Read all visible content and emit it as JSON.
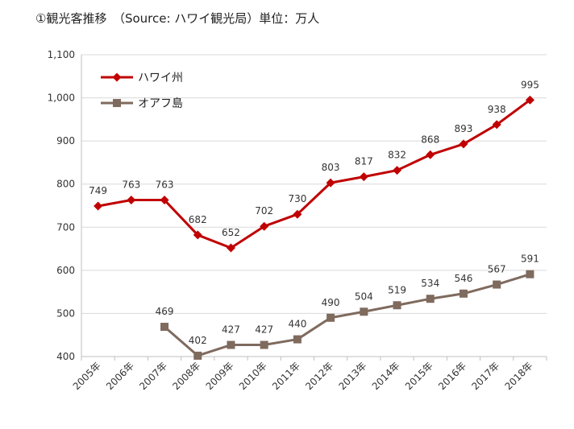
{
  "title": "①観光客推移　（Source: ハワイ観光局）単位：万人",
  "chart_data": {
    "type": "line",
    "categories": [
      "2005年",
      "2006年",
      "2007年",
      "2008年",
      "2009年",
      "2010年",
      "2011年",
      "2012年",
      "2013年",
      "2014年",
      "2015年",
      "2016年",
      "2017年",
      "2018年"
    ],
    "ylim": [
      400,
      1100
    ],
    "yticks": [
      400,
      500,
      600,
      700,
      800,
      900,
      1000,
      1100
    ],
    "ytick_labels": [
      "400",
      "500",
      "600",
      "700",
      "800",
      "900",
      "1,000",
      "1,100"
    ],
    "grid": true,
    "legend_position": "top-left",
    "series": [
      {
        "name": "ハワイ州",
        "color": "#c00000",
        "marker": "diamond",
        "values": [
          749,
          763,
          763,
          682,
          652,
          702,
          730,
          803,
          817,
          832,
          868,
          893,
          938,
          995
        ],
        "labels": [
          "749",
          "763",
          "763",
          "682",
          "652",
          "702",
          "730",
          "803",
          "817",
          "832",
          "868",
          "893",
          "938",
          "995"
        ]
      },
      {
        "name": "オアフ島",
        "color": "#7f6a5e",
        "marker": "square",
        "values": [
          null,
          null,
          469,
          402,
          427,
          427,
          440,
          490,
          504,
          519,
          534,
          546,
          567,
          591
        ],
        "labels": [
          null,
          null,
          "469",
          "402",
          "427",
          "427",
          "440",
          "490",
          "504",
          "519",
          "534",
          "546",
          "567",
          "591"
        ]
      }
    ]
  }
}
